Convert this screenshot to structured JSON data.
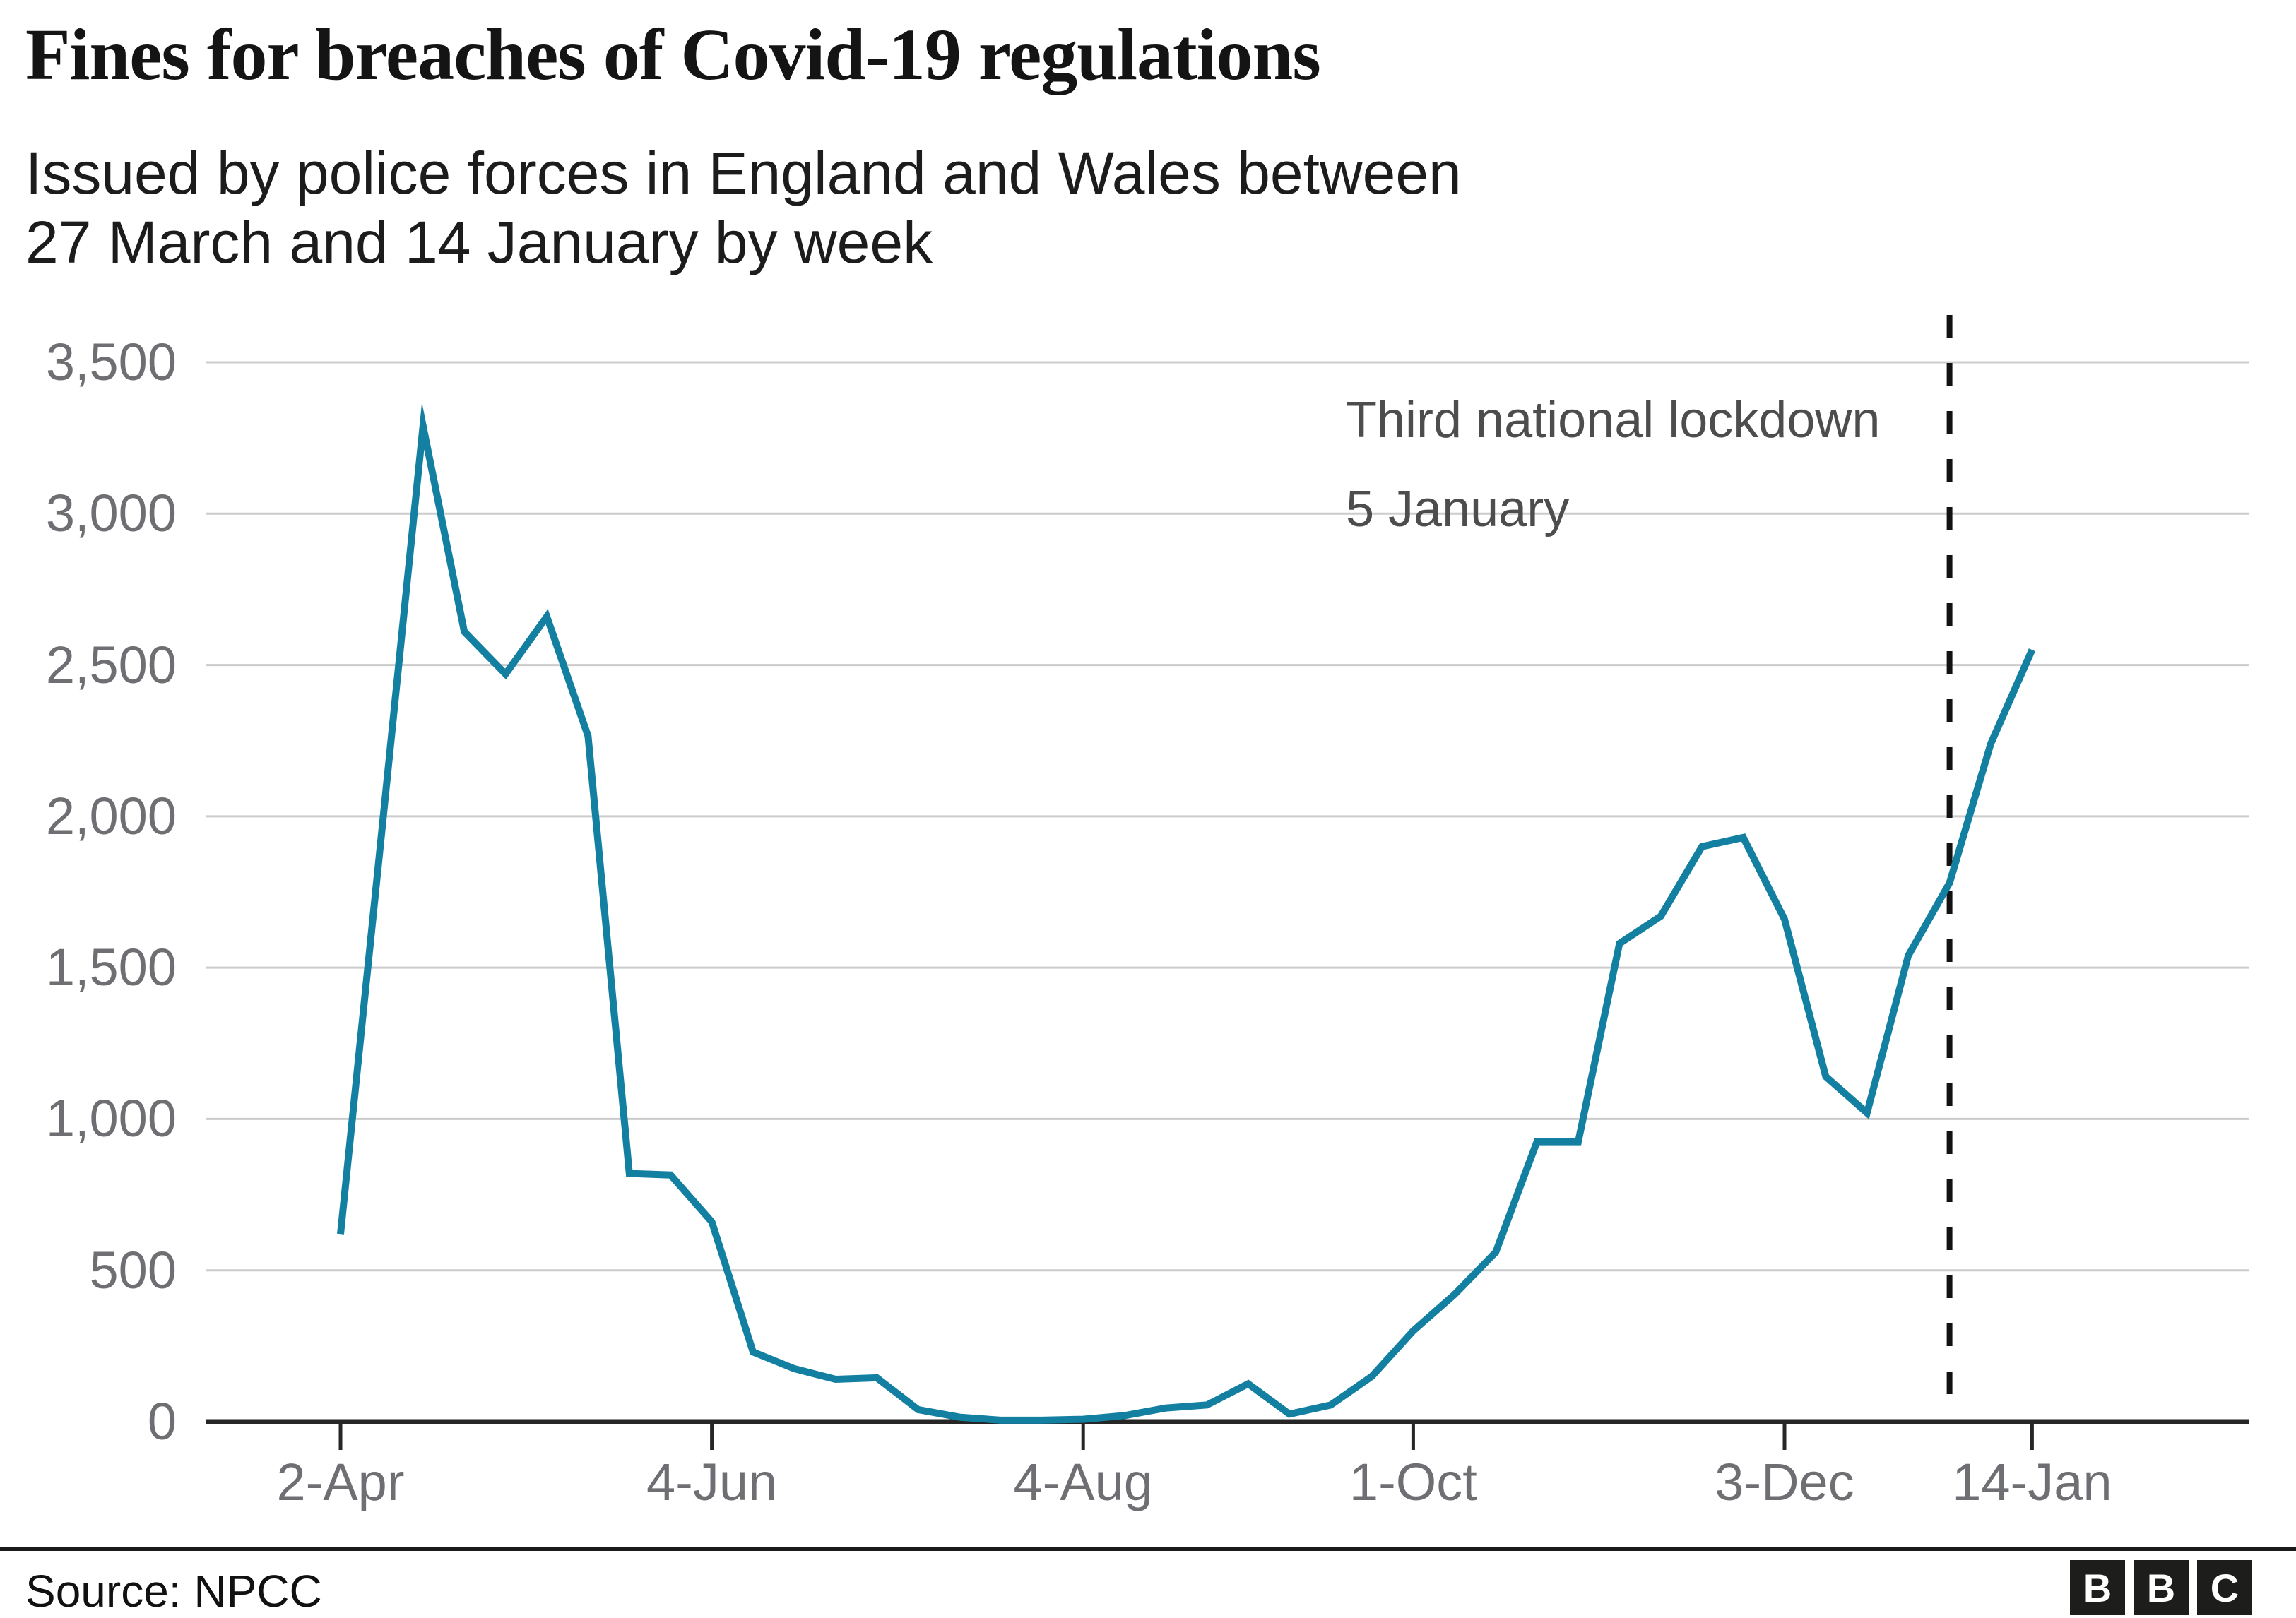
{
  "title": "Fines for breaches of Covid-19 regulations",
  "subtitle": {
    "line1": "Issued by police forces in England and Wales between",
    "line2": "27 March and 14 January by week"
  },
  "annotation": {
    "line1": "Third national lockdown",
    "line2": "5 January"
  },
  "source": "Source: NPCC",
  "logo": {
    "letter1": "B",
    "letter2": "B",
    "letter3": "C"
  },
  "colors": {
    "line": "#1380A1",
    "grid": "#cccccc",
    "axis": "#262626",
    "tick": "#262626",
    "axis_label": "#6f6f73",
    "annotation_text": "#4d4d4d",
    "dashed_line": "#121212",
    "title_text": "#141414"
  },
  "chart_data": {
    "type": "line",
    "title": "Fines for breaches of Covid-19 regulations",
    "subtitle": "Issued by police forces in England and Wales between 27 March and 14 January by week",
    "x_unit": "week",
    "n_points": 42,
    "values": [
      620,
      1950,
      3290,
      2610,
      2470,
      2660,
      2265,
      820,
      815,
      660,
      230,
      175,
      140,
      145,
      40,
      15,
      5,
      5,
      8,
      20,
      45,
      55,
      125,
      25,
      55,
      150,
      300,
      420,
      560,
      925,
      925,
      1580,
      1670,
      1900,
      1930,
      1660,
      1140,
      1020,
      1540,
      1780,
      2240,
      2550
    ],
    "xticks": [
      {
        "label": "2-Apr",
        "index": 0
      },
      {
        "label": "4-Jun",
        "index": 9
      },
      {
        "label": "4-Aug",
        "index": 18
      },
      {
        "label": "1-Oct",
        "index": 26
      },
      {
        "label": "3-Dec",
        "index": 35
      },
      {
        "label": "14-Jan",
        "index": 41
      }
    ],
    "ytick_values": [
      0,
      500,
      1000,
      1500,
      2000,
      2500,
      3000,
      3500
    ],
    "ytick_labels": [
      "0",
      "500",
      "1,000",
      "1,500",
      "2,000",
      "2,500",
      "3,000",
      "3,500"
    ],
    "ylim": [
      0,
      3500
    ],
    "grid": "horizontal",
    "legend": "none",
    "reference_line": {
      "orientation": "vertical",
      "x_index": 39,
      "style": "dashed",
      "label_line1": "Third national lockdown",
      "label_line2": "5 January"
    }
  }
}
